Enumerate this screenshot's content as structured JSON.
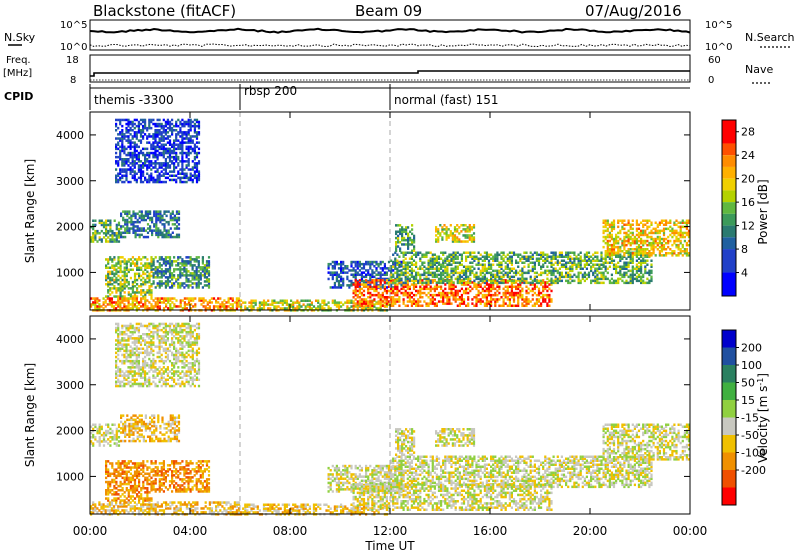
{
  "header": {
    "station": "Blackstone (fitACF)",
    "beam": "Beam 09",
    "date": "07/Aug/2016"
  },
  "summary": {
    "nsky_label": "N.Sky",
    "nsearch_label": "N.Search",
    "nsky_ticks": [
      "10^5",
      "10^0"
    ],
    "freq_label_1": "Freq.",
    "freq_label_2": "[MHz]",
    "freq_ticks": [
      "18",
      "8"
    ],
    "nave_label": "Nave",
    "nave_ticks": [
      "60",
      "0"
    ],
    "cpid_label": "CPID"
  },
  "cpid_segments": [
    {
      "name": "themis -3300",
      "start": 0,
      "end": 6
    },
    {
      "name": "rbsp 200",
      "start": 6,
      "end": 12
    },
    {
      "name": "normal (fast) 151",
      "start": 12,
      "end": 24
    }
  ],
  "x_axis": {
    "label": "Time UT",
    "ticks": [
      "00:00",
      "04:00",
      "08:00",
      "12:00",
      "16:00",
      "20:00",
      "00:00"
    ],
    "range_hours": [
      0,
      24
    ]
  },
  "chart_data": [
    {
      "type": "heatmap",
      "panel": "power",
      "ylabel": "Slant Range [km]",
      "yticks": [
        "4000",
        "3000",
        "2000",
        "1000"
      ],
      "ylim": [
        180,
        4500
      ],
      "colorbar": {
        "label": "Power [dB]",
        "tick_values": [
          28,
          24,
          20,
          16,
          12,
          8,
          4
        ],
        "tick_labels": [
          "28",
          "24",
          "20",
          "16",
          "12",
          "8",
          "4"
        ],
        "range": [
          0,
          30
        ],
        "bands": [
          {
            "from": 26,
            "to": 30,
            "color": "#ff0000"
          },
          {
            "from": 24,
            "to": 26,
            "color": "#ff5000"
          },
          {
            "from": 22,
            "to": 24,
            "color": "#ff8c00"
          },
          {
            "from": 20,
            "to": 22,
            "color": "#ffb000"
          },
          {
            "from": 18,
            "to": 20,
            "color": "#f0d000"
          },
          {
            "from": 16,
            "to": 18,
            "color": "#b4d200"
          },
          {
            "from": 14,
            "to": 16,
            "color": "#60b840"
          },
          {
            "from": 12,
            "to": 14,
            "color": "#3c9a5a"
          },
          {
            "from": 10,
            "to": 12,
            "color": "#2a7a70"
          },
          {
            "from": 8,
            "to": 10,
            "color": "#2060a0"
          },
          {
            "from": 4,
            "to": 8,
            "color": "#2040c8"
          },
          {
            "from": 0,
            "to": 4,
            "color": "#0000ff"
          }
        ]
      },
      "scatter_regions": [
        {
          "t0": 0.0,
          "t1": 1.2,
          "r0": 1700,
          "r1": 2200,
          "lvl": 14
        },
        {
          "t0": 1.2,
          "t1": 3.6,
          "r0": 1800,
          "r1": 2400,
          "lvl": 10
        },
        {
          "t0": 0.6,
          "t1": 2.5,
          "r0": 500,
          "r1": 1400,
          "lvl": 16
        },
        {
          "t0": 2.5,
          "t1": 4.8,
          "r0": 700,
          "r1": 1400,
          "lvl": 12
        },
        {
          "t0": 0.0,
          "t1": 6.0,
          "r0": 200,
          "r1": 500,
          "lvl": 22
        },
        {
          "t0": 6.0,
          "t1": 12.0,
          "r0": 200,
          "r1": 450,
          "lvl": 18
        },
        {
          "t0": 9.5,
          "t1": 12.5,
          "r0": 700,
          "r1": 1300,
          "lvl": 8
        },
        {
          "t0": 10.5,
          "t1": 18.5,
          "r0": 300,
          "r1": 900,
          "lvl": 24
        },
        {
          "t0": 12.0,
          "t1": 22.5,
          "r0": 800,
          "r1": 1500,
          "lvl": 14
        },
        {
          "t0": 12.2,
          "t1": 13.0,
          "r0": 1500,
          "r1": 2100,
          "lvl": 14
        },
        {
          "t0": 13.8,
          "t1": 15.4,
          "r0": 1700,
          "r1": 2100,
          "lvl": 18
        },
        {
          "t0": 20.5,
          "t1": 24.0,
          "r0": 1400,
          "r1": 2200,
          "lvl": 20
        },
        {
          "t0": 1.0,
          "t1": 4.4,
          "r0": 3000,
          "r1": 4400,
          "lvl": 6
        }
      ]
    },
    {
      "type": "heatmap",
      "panel": "velocity",
      "ylabel": "Slant Range [km]",
      "yticks": [
        "4000",
        "3000",
        "2000",
        "1000"
      ],
      "ylim": [
        180,
        4500
      ],
      "colorbar": {
        "label": "Velocity [m s^-1]",
        "tick_labels": [
          "200",
          "100",
          "50",
          "15",
          "-15",
          "-50",
          "-100",
          "-200"
        ],
        "bands": [
          {
            "color": "#0000cc"
          },
          {
            "color": "#2050a0"
          },
          {
            "color": "#2a8060"
          },
          {
            "color": "#40b040"
          },
          {
            "color": "#90d040"
          },
          {
            "color": "#c8c8c0"
          },
          {
            "color": "#f0c000"
          },
          {
            "color": "#f09000"
          },
          {
            "color": "#f05000"
          },
          {
            "color": "#ff0000"
          }
        ]
      },
      "scatter_regions": [
        {
          "t0": 0.0,
          "t1": 1.2,
          "r0": 1700,
          "r1": 2200,
          "lvl": 5
        },
        {
          "t0": 1.2,
          "t1": 3.6,
          "r0": 1800,
          "r1": 2400,
          "lvl": 6
        },
        {
          "t0": 0.6,
          "t1": 2.5,
          "r0": 500,
          "r1": 1400,
          "lvl": 7
        },
        {
          "t0": 2.5,
          "t1": 4.8,
          "r0": 700,
          "r1": 1400,
          "lvl": 7
        },
        {
          "t0": 0.0,
          "t1": 6.0,
          "r0": 200,
          "r1": 500,
          "lvl": 6
        },
        {
          "t0": 6.0,
          "t1": 12.0,
          "r0": 200,
          "r1": 450,
          "lvl": 6
        },
        {
          "t0": 9.5,
          "t1": 12.5,
          "r0": 700,
          "r1": 1300,
          "lvl": 5
        },
        {
          "t0": 10.5,
          "t1": 18.5,
          "r0": 300,
          "r1": 900,
          "lvl": 5
        },
        {
          "t0": 12.0,
          "t1": 22.5,
          "r0": 800,
          "r1": 1500,
          "lvl": 5
        },
        {
          "t0": 12.2,
          "t1": 13.0,
          "r0": 1500,
          "r1": 2100,
          "lvl": 5
        },
        {
          "t0": 13.8,
          "t1": 15.4,
          "r0": 1700,
          "r1": 2100,
          "lvl": 5
        },
        {
          "t0": 20.5,
          "t1": 24.0,
          "r0": 1400,
          "r1": 2200,
          "lvl": 5
        },
        {
          "t0": 1.0,
          "t1": 4.4,
          "r0": 3000,
          "r1": 4400,
          "lvl": 5
        }
      ]
    }
  ]
}
